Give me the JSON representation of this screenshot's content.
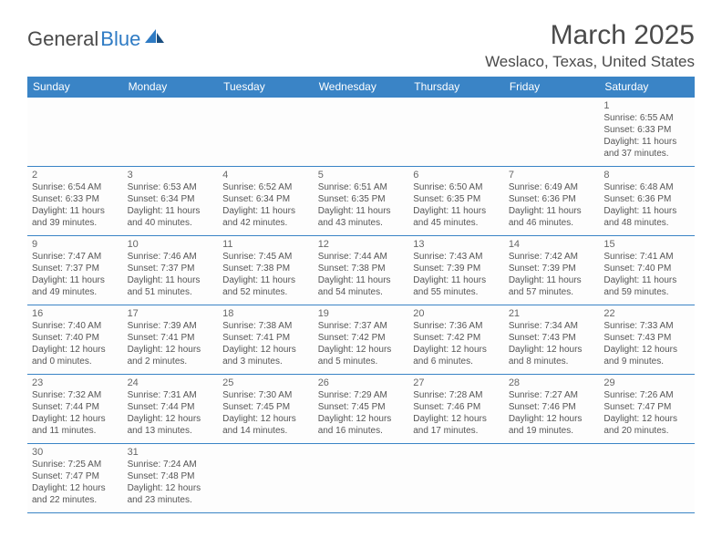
{
  "logo": {
    "text1": "General",
    "text2": "Blue"
  },
  "title": "March 2025",
  "location": "Weslaco, Texas, United States",
  "colors": {
    "header_bg": "#3a84c6",
    "header_text": "#ffffff",
    "border": "#3a84c6",
    "text": "#555555",
    "daynum": "#666666",
    "logo_gray": "#4a4a4a",
    "logo_blue": "#2f7bc4"
  },
  "day_headers": [
    "Sunday",
    "Monday",
    "Tuesday",
    "Wednesday",
    "Thursday",
    "Friday",
    "Saturday"
  ],
  "weeks": [
    [
      null,
      null,
      null,
      null,
      null,
      null,
      {
        "n": "1",
        "sr": "6:55 AM",
        "ss": "6:33 PM",
        "dl": "11 hours and 37 minutes."
      }
    ],
    [
      {
        "n": "2",
        "sr": "6:54 AM",
        "ss": "6:33 PM",
        "dl": "11 hours and 39 minutes."
      },
      {
        "n": "3",
        "sr": "6:53 AM",
        "ss": "6:34 PM",
        "dl": "11 hours and 40 minutes."
      },
      {
        "n": "4",
        "sr": "6:52 AM",
        "ss": "6:34 PM",
        "dl": "11 hours and 42 minutes."
      },
      {
        "n": "5",
        "sr": "6:51 AM",
        "ss": "6:35 PM",
        "dl": "11 hours and 43 minutes."
      },
      {
        "n": "6",
        "sr": "6:50 AM",
        "ss": "6:35 PM",
        "dl": "11 hours and 45 minutes."
      },
      {
        "n": "7",
        "sr": "6:49 AM",
        "ss": "6:36 PM",
        "dl": "11 hours and 46 minutes."
      },
      {
        "n": "8",
        "sr": "6:48 AM",
        "ss": "6:36 PM",
        "dl": "11 hours and 48 minutes."
      }
    ],
    [
      {
        "n": "9",
        "sr": "7:47 AM",
        "ss": "7:37 PM",
        "dl": "11 hours and 49 minutes."
      },
      {
        "n": "10",
        "sr": "7:46 AM",
        "ss": "7:37 PM",
        "dl": "11 hours and 51 minutes."
      },
      {
        "n": "11",
        "sr": "7:45 AM",
        "ss": "7:38 PM",
        "dl": "11 hours and 52 minutes."
      },
      {
        "n": "12",
        "sr": "7:44 AM",
        "ss": "7:38 PM",
        "dl": "11 hours and 54 minutes."
      },
      {
        "n": "13",
        "sr": "7:43 AM",
        "ss": "7:39 PM",
        "dl": "11 hours and 55 minutes."
      },
      {
        "n": "14",
        "sr": "7:42 AM",
        "ss": "7:39 PM",
        "dl": "11 hours and 57 minutes."
      },
      {
        "n": "15",
        "sr": "7:41 AM",
        "ss": "7:40 PM",
        "dl": "11 hours and 59 minutes."
      }
    ],
    [
      {
        "n": "16",
        "sr": "7:40 AM",
        "ss": "7:40 PM",
        "dl": "12 hours and 0 minutes."
      },
      {
        "n": "17",
        "sr": "7:39 AM",
        "ss": "7:41 PM",
        "dl": "12 hours and 2 minutes."
      },
      {
        "n": "18",
        "sr": "7:38 AM",
        "ss": "7:41 PM",
        "dl": "12 hours and 3 minutes."
      },
      {
        "n": "19",
        "sr": "7:37 AM",
        "ss": "7:42 PM",
        "dl": "12 hours and 5 minutes."
      },
      {
        "n": "20",
        "sr": "7:36 AM",
        "ss": "7:42 PM",
        "dl": "12 hours and 6 minutes."
      },
      {
        "n": "21",
        "sr": "7:34 AM",
        "ss": "7:43 PM",
        "dl": "12 hours and 8 minutes."
      },
      {
        "n": "22",
        "sr": "7:33 AM",
        "ss": "7:43 PM",
        "dl": "12 hours and 9 minutes."
      }
    ],
    [
      {
        "n": "23",
        "sr": "7:32 AM",
        "ss": "7:44 PM",
        "dl": "12 hours and 11 minutes."
      },
      {
        "n": "24",
        "sr": "7:31 AM",
        "ss": "7:44 PM",
        "dl": "12 hours and 13 minutes."
      },
      {
        "n": "25",
        "sr": "7:30 AM",
        "ss": "7:45 PM",
        "dl": "12 hours and 14 minutes."
      },
      {
        "n": "26",
        "sr": "7:29 AM",
        "ss": "7:45 PM",
        "dl": "12 hours and 16 minutes."
      },
      {
        "n": "27",
        "sr": "7:28 AM",
        "ss": "7:46 PM",
        "dl": "12 hours and 17 minutes."
      },
      {
        "n": "28",
        "sr": "7:27 AM",
        "ss": "7:46 PM",
        "dl": "12 hours and 19 minutes."
      },
      {
        "n": "29",
        "sr": "7:26 AM",
        "ss": "7:47 PM",
        "dl": "12 hours and 20 minutes."
      }
    ],
    [
      {
        "n": "30",
        "sr": "7:25 AM",
        "ss": "7:47 PM",
        "dl": "12 hours and 22 minutes."
      },
      {
        "n": "31",
        "sr": "7:24 AM",
        "ss": "7:48 PM",
        "dl": "12 hours and 23 minutes."
      },
      null,
      null,
      null,
      null,
      null
    ]
  ],
  "labels": {
    "sunrise": "Sunrise: ",
    "sunset": "Sunset: ",
    "daylight": "Daylight: "
  }
}
